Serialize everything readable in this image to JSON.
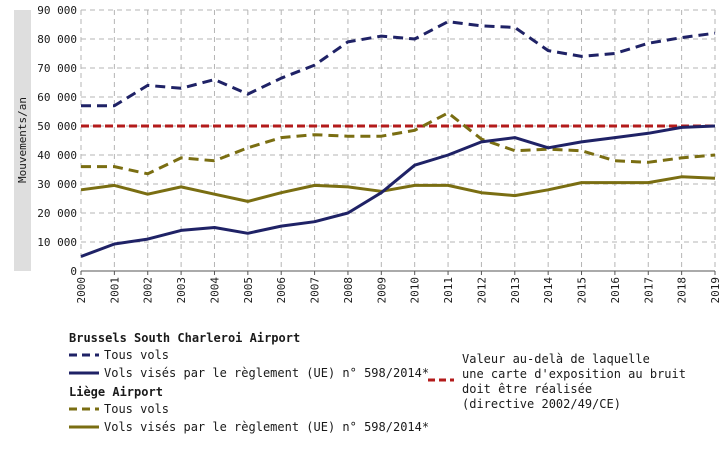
{
  "chart_data": {
    "type": "line",
    "ylabel": "Mouvements/an",
    "xlabel": "",
    "title": "",
    "ylim": [
      0,
      90000
    ],
    "yticks": [
      0,
      10000,
      20000,
      30000,
      40000,
      50000,
      60000,
      70000,
      80000,
      90000
    ],
    "ytick_labels": [
      "0",
      "10 000",
      "20 000",
      "30 000",
      "40 000",
      "50 000",
      "60 000",
      "70 000",
      "80 000",
      "90 000"
    ],
    "x": [
      "2000",
      "2001",
      "2002",
      "2003",
      "2004",
      "2005",
      "2006",
      "2007",
      "2008",
      "2009",
      "2010",
      "2011",
      "2012",
      "2013",
      "2014",
      "2015",
      "2016",
      "2017",
      "2018",
      "2019"
    ],
    "grid": true,
    "series": [
      {
        "id": "bsca_all",
        "name": "Tous vols",
        "group": "Brussels South Charleroi Airport",
        "color": "#1f2266",
        "dash": "dashed",
        "values": [
          57000,
          57000,
          64000,
          63000,
          66000,
          61000,
          66500,
          71000,
          79000,
          81000,
          80000,
          86000,
          84500,
          84000,
          76000,
          74000,
          75000,
          78500,
          80500,
          82000
        ]
      },
      {
        "id": "bsca_reg",
        "name": "Vols visés par le règlement (UE) n° 598/2014*",
        "group": "Brussels South Charleroi Airport",
        "color": "#1f2266",
        "dash": "solid",
        "values": [
          5000,
          9300,
          11000,
          14000,
          15000,
          13000,
          15500,
          17000,
          20000,
          27000,
          36500,
          40000,
          44500,
          46000,
          42500,
          44500,
          46000,
          47500,
          49500,
          50000
        ]
      },
      {
        "id": "lgg_all",
        "name": "Tous vols",
        "group": "Liège Airport",
        "color": "#7a6e12",
        "dash": "dashed",
        "values": [
          36000,
          36000,
          33500,
          39000,
          38000,
          42500,
          46000,
          47000,
          46500,
          46500,
          48500,
          54500,
          45500,
          41500,
          42000,
          41500,
          38000,
          37500,
          39000,
          40000
        ]
      },
      {
        "id": "lgg_reg",
        "name": "Vols visés par le règlement (UE) n° 598/2014*",
        "group": "Liège Airport",
        "color": "#7a6e12",
        "dash": "solid",
        "values": [
          28000,
          29500,
          26500,
          29000,
          26500,
          24000,
          27000,
          29500,
          29000,
          27500,
          29500,
          29500,
          27000,
          26000,
          28000,
          30500,
          30500,
          30500,
          32500,
          32000
        ]
      },
      {
        "id": "threshold",
        "name": "Valeur au-delà de laquelle une carte d'exposition au bruit doit être réalisée (directive 2002/49/CE)",
        "color": "#b31b1b",
        "dash": "dashed",
        "values": [
          50000,
          50000,
          50000,
          50000,
          50000,
          50000,
          50000,
          50000,
          50000,
          50000,
          50000,
          50000,
          50000,
          50000,
          50000,
          50000,
          50000,
          50000,
          50000,
          50000
        ]
      }
    ]
  },
  "legend": {
    "groups": [
      {
        "title": "Brussels South Charleroi Airport",
        "items": [
          {
            "label": "Tous vols",
            "color": "#1f2266",
            "dash": "dashed"
          },
          {
            "label": "Vols visés par le règlement (UE) n° 598/2014*",
            "color": "#1f2266",
            "dash": "solid"
          }
        ]
      },
      {
        "title": "Liège Airport",
        "items": [
          {
            "label": "Tous vols",
            "color": "#7a6e12",
            "dash": "dashed"
          },
          {
            "label": "Vols visés par le règlement (UE) n° 598/2014*",
            "color": "#7a6e12",
            "dash": "solid"
          }
        ]
      }
    ],
    "threshold_note": "Valeur au-delà de laquelle\nune carte d'exposition au bruit\ndoit être réalisée\n(directive 2002/49/CE)",
    "threshold_color": "#b31b1b"
  }
}
